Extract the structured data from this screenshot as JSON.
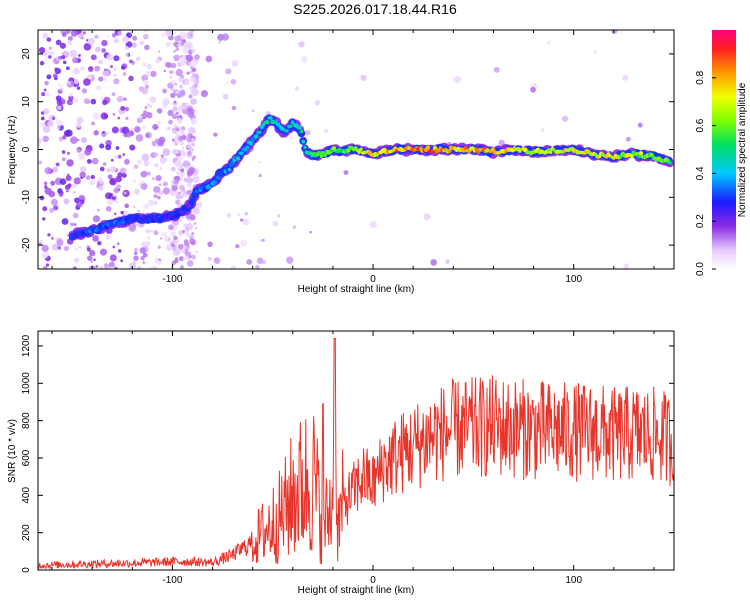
{
  "title": "S225.2026.017.18.44.R16",
  "chart_data": [
    {
      "type": "heatmap",
      "title": "S225.2026.017.18.44.R16",
      "xlabel": "Height of straight line (km)",
      "ylabel": "Frequency (Hz)",
      "xlim": [
        -167,
        150
      ],
      "ylim": [
        -25,
        25
      ],
      "xticks": [
        -100,
        0,
        100
      ],
      "yticks": [
        -20,
        -10,
        0,
        10,
        20
      ],
      "colorbar": {
        "label": "Normalized spectral amplitude",
        "range": [
          0.0,
          1.0
        ],
        "ticks": [
          0.0,
          0.2,
          0.4,
          0.6,
          0.8
        ]
      },
      "ridge": {
        "x": [
          -150,
          -140,
          -130,
          -120,
          -110,
          -100,
          -92,
          -88,
          -84,
          -80,
          -76,
          -72,
          -68,
          -64,
          -60,
          -56,
          -52,
          -48,
          -44,
          -40,
          -36,
          -33,
          -30,
          -25,
          -20,
          -15,
          -10,
          -5,
          0,
          10,
          20,
          30,
          40,
          50,
          60,
          70,
          80,
          90,
          100,
          110,
          120,
          130,
          140,
          148
        ],
        "freq": [
          -18,
          -17,
          -15.5,
          -14.5,
          -14.5,
          -14,
          -12,
          -9,
          -8,
          -7,
          -5,
          -4,
          -2,
          0,
          2,
          4,
          6.5,
          5.5,
          3.5,
          5.5,
          4,
          -1,
          -1.2,
          -1,
          0,
          -0.5,
          0.2,
          -0.5,
          -1,
          0,
          0,
          0,
          0,
          0,
          -0.5,
          0,
          -0.5,
          -0.2,
          0,
          -1,
          -1.5,
          -1,
          -1.5,
          -2.5
        ],
        "amplitude": [
          0.3,
          0.35,
          0.35,
          0.3,
          0.3,
          0.3,
          0.25,
          0.35,
          0.35,
          0.4,
          0.4,
          0.4,
          0.45,
          0.45,
          0.45,
          0.5,
          0.55,
          0.5,
          0.5,
          0.5,
          0.5,
          0.5,
          0.55,
          0.6,
          0.7,
          0.6,
          0.65,
          0.75,
          0.8,
          0.9,
          0.95,
          0.9,
          0.8,
          0.9,
          0.8,
          0.85,
          0.75,
          0.8,
          0.8,
          0.8,
          0.75,
          0.7,
          0.65,
          0.6
        ]
      }
    },
    {
      "type": "line",
      "xlabel": "Height of straight line (km)",
      "ylabel": "SNR (10 * v/v)",
      "xlim": [
        -167,
        150
      ],
      "ylim": [
        0,
        1280
      ],
      "xticks": [
        -100,
        0,
        100
      ],
      "yticks": [
        0,
        200,
        400,
        600,
        800,
        1000,
        1200
      ],
      "color": "#e8352b",
      "series": [
        {
          "name": "SNR",
          "x": [
            -167,
            -150,
            -130,
            -110,
            -100,
            -90,
            -80,
            -75,
            -70,
            -60,
            -50,
            -45,
            -40,
            -35,
            -30,
            -25,
            -22,
            -20,
            -19,
            -18,
            -15,
            -10,
            -5,
            0,
            5,
            10,
            20,
            30,
            40,
            50,
            60,
            70,
            80,
            90,
            100,
            110,
            120,
            130,
            140,
            150
          ],
          "y": [
            25,
            30,
            35,
            40,
            45,
            45,
            40,
            60,
            80,
            150,
            250,
            300,
            400,
            450,
            500,
            250,
            300,
            380,
            1240,
            200,
            350,
            420,
            500,
            460,
            560,
            600,
            660,
            720,
            750,
            760,
            770,
            760,
            750,
            745,
            740,
            740,
            720,
            730,
            720,
            700
          ]
        }
      ]
    }
  ]
}
